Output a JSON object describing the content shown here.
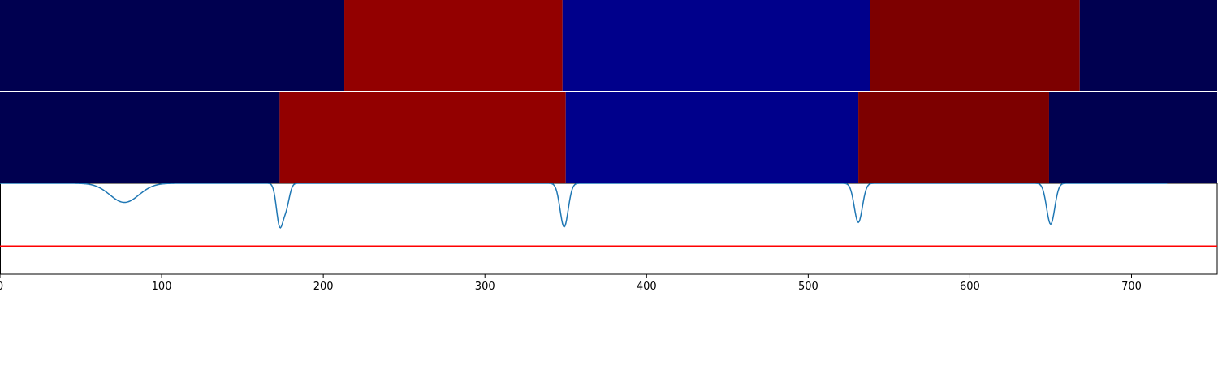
{
  "chart_data": {
    "type": "heatmap",
    "xlim": [
      0,
      753
    ],
    "x_ticks": [
      0,
      100,
      200,
      300,
      400,
      500,
      600,
      700
    ],
    "grid": false,
    "legend": "none",
    "panels": [
      {
        "type": "heatmap",
        "segments": [
          {
            "start": 0,
            "end": 213,
            "color": "#000050"
          },
          {
            "start": 213,
            "end": 348,
            "color": "#930000"
          },
          {
            "start": 348,
            "end": 538,
            "color": "#00008b"
          },
          {
            "start": 538,
            "end": 668,
            "color": "#7d0000"
          },
          {
            "start": 668,
            "end": 753,
            "color": "#000050"
          }
        ]
      },
      {
        "type": "heatmap",
        "segments": [
          {
            "start": 0,
            "end": 173,
            "color": "#000050"
          },
          {
            "start": 173,
            "end": 350,
            "color": "#930000"
          },
          {
            "start": 350,
            "end": 531,
            "color": "#00008b"
          },
          {
            "start": 531,
            "end": 649,
            "color": "#7d0000"
          },
          {
            "start": 649,
            "end": 753,
            "color": "#000050"
          }
        ]
      },
      {
        "type": "line",
        "ylim": [
          0,
          1
        ],
        "series": [
          {
            "color": "#1f77b4",
            "baseline": 1.0,
            "dips": [
              {
                "center": 77,
                "depth": 0.21,
                "width": 9
              },
              {
                "center": 173,
                "depth": 0.45,
                "width": 2
              },
              {
                "center": 177,
                "depth": 0.25,
                "width": 2
              },
              {
                "center": 349,
                "depth": 0.48,
                "width": 2.5
              },
              {
                "center": 531,
                "depth": 0.43,
                "width": 2.5
              },
              {
                "center": 650,
                "depth": 0.45,
                "width": 2.5
              }
            ],
            "x_end": 722
          }
        ],
        "threshold": {
          "y": 0.31,
          "color": "#ff0000"
        }
      }
    ]
  }
}
